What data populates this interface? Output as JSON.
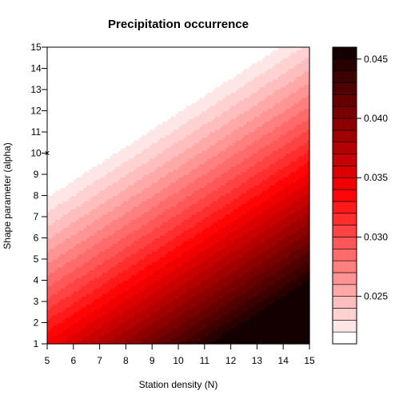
{
  "chart_data": {
    "type": "heatmap",
    "subtype": "filled-contour",
    "title": "Precipitation occurrence",
    "xlabel": "Station density (N)",
    "ylabel": "Shape parameter (alpha)",
    "xlim": [
      5,
      15
    ],
    "ylim": [
      1,
      15
    ],
    "x_ticks": [
      5,
      6,
      7,
      8,
      9,
      10,
      11,
      12,
      13,
      14,
      15
    ],
    "y_ticks": [
      1,
      2,
      3,
      4,
      5,
      6,
      7,
      8,
      9,
      10,
      11,
      12,
      13,
      14,
      15
    ],
    "colorbar": {
      "min": 0.021,
      "max": 0.046,
      "step": 0.001,
      "ticks": [
        0.025,
        0.03,
        0.035,
        0.04,
        0.045
      ],
      "tick_labels": [
        "0.025",
        "0.030",
        "0.035",
        "0.040",
        "0.045"
      ],
      "colors": [
        "#ffffff",
        "#ffe6e6",
        "#ffd1d1",
        "#ffbdbd",
        "#ffa8a8",
        "#ff9494",
        "#ff7f7f",
        "#ff6b6b",
        "#ff5757",
        "#ff4242",
        "#ff2e2e",
        "#ff1919",
        "#ff0505",
        "#f00000",
        "#dc0000",
        "#c80000",
        "#b40000",
        "#a00000",
        "#8c0000",
        "#780000",
        "#640000",
        "#500000",
        "#3c0000",
        "#280000",
        "#140000"
      ]
    },
    "marker": {
      "x": 5,
      "y": 10,
      "symbol": "×"
    },
    "grid": false,
    "legend": "colorbar-right"
  }
}
